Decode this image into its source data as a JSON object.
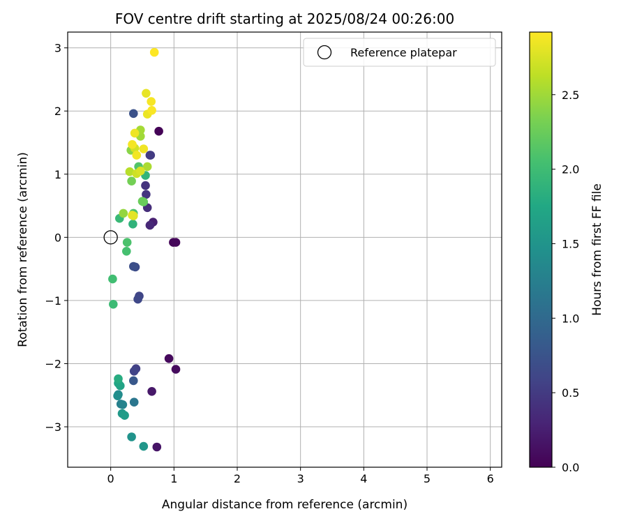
{
  "chart_data": {
    "type": "scatter",
    "title": "FOV centre drift starting at 2025/08/24 00:26:00",
    "xlabel": "Angular distance from reference (arcmin)",
    "ylabel": "Rotation from reference (arcmin)",
    "xlim": [
      -0.68,
      6.18
    ],
    "ylim": [
      -3.64,
      3.25
    ],
    "xticks": [
      0,
      1,
      2,
      3,
      4,
      5,
      6
    ],
    "xtick_labels": [
      "0",
      "1",
      "2",
      "3",
      "4",
      "5",
      "6"
    ],
    "yticks": [
      -3,
      -2,
      -1,
      0,
      1,
      2,
      3
    ],
    "ytick_labels": [
      "−3",
      "−2",
      "−1",
      "0",
      "1",
      "2",
      "3"
    ],
    "grid": true,
    "legend": {
      "position": "top-right",
      "entries": [
        {
          "label": "Reference platepar",
          "marker": "open-circle"
        }
      ]
    },
    "reference": {
      "x": 0,
      "y": 0
    },
    "colorbar": {
      "label": "Hours from first FF file",
      "colormap": "viridis",
      "range": [
        0,
        2.92
      ],
      "ticks": [
        0.0,
        0.5,
        1.0,
        1.5,
        2.0,
        2.5
      ],
      "tick_labels": [
        "0.0",
        "0.5",
        "1.0",
        "1.5",
        "2.0",
        "2.5"
      ]
    },
    "points": [
      {
        "x": 0.76,
        "y": 1.68,
        "t": 0.02
      },
      {
        "x": 0.99,
        "y": -0.08,
        "t": 0.04
      },
      {
        "x": 1.03,
        "y": -0.08,
        "t": 0.05
      },
      {
        "x": 0.92,
        "y": -1.92,
        "t": 0.07
      },
      {
        "x": 1.03,
        "y": -2.09,
        "t": 0.08
      },
      {
        "x": 0.73,
        "y": -3.32,
        "t": 0.16
      },
      {
        "x": 0.65,
        "y": -2.44,
        "t": 0.19
      },
      {
        "x": 0.67,
        "y": 0.24,
        "t": 0.26
      },
      {
        "x": 0.62,
        "y": 0.19,
        "t": 0.33
      },
      {
        "x": 0.58,
        "y": 0.47,
        "t": 0.38
      },
      {
        "x": 0.55,
        "y": 0.82,
        "t": 0.42
      },
      {
        "x": 0.56,
        "y": 0.68,
        "t": 0.45
      },
      {
        "x": 0.63,
        "y": 1.3,
        "t": 0.48
      },
      {
        "x": 0.62,
        "y": 1.3,
        "t": 0.5
      },
      {
        "x": 0.4,
        "y": -2.08,
        "t": 0.55
      },
      {
        "x": 0.37,
        "y": -2.12,
        "t": 0.58
      },
      {
        "x": 0.45,
        "y": -0.93,
        "t": 0.6
      },
      {
        "x": 0.43,
        "y": -0.98,
        "t": 0.63
      },
      {
        "x": 0.39,
        "y": -0.47,
        "t": 0.67
      },
      {
        "x": 0.36,
        "y": -0.46,
        "t": 0.7
      },
      {
        "x": 0.36,
        "y": 1.96,
        "t": 0.73
      },
      {
        "x": 0.36,
        "y": -2.27,
        "t": 0.8
      },
      {
        "x": 0.37,
        "y": -2.61,
        "t": 1.15
      },
      {
        "x": 0.16,
        "y": -2.64,
        "t": 1.25
      },
      {
        "x": 0.19,
        "y": -2.65,
        "t": 1.3
      },
      {
        "x": 0.12,
        "y": -2.49,
        "t": 1.35
      },
      {
        "x": 0.11,
        "y": -2.51,
        "t": 1.42
      },
      {
        "x": 0.33,
        "y": -3.16,
        "t": 1.48
      },
      {
        "x": 0.52,
        "y": -3.31,
        "t": 1.52
      },
      {
        "x": 0.18,
        "y": -2.79,
        "t": 1.56
      },
      {
        "x": 0.22,
        "y": -2.82,
        "t": 1.6
      },
      {
        "x": 0.15,
        "y": -2.35,
        "t": 1.68
      },
      {
        "x": 0.12,
        "y": -2.31,
        "t": 1.72
      },
      {
        "x": 0.12,
        "y": -2.24,
        "t": 1.8
      },
      {
        "x": 0.35,
        "y": 0.21,
        "t": 1.88
      },
      {
        "x": 0.55,
        "y": 0.98,
        "t": 1.9
      },
      {
        "x": 0.14,
        "y": 0.3,
        "t": 1.95
      },
      {
        "x": 0.04,
        "y": -1.06,
        "t": 1.98
      },
      {
        "x": 0.03,
        "y": -0.66,
        "t": 2.02
      },
      {
        "x": 0.25,
        "y": -0.22,
        "t": 2.05
      },
      {
        "x": 0.26,
        "y": -0.08,
        "t": 2.08
      },
      {
        "x": 0.36,
        "y": 0.38,
        "t": 2.1
      },
      {
        "x": 0.44,
        "y": 1.12,
        "t": 2.12
      },
      {
        "x": 0.52,
        "y": 0.56,
        "t": 2.2
      },
      {
        "x": 0.5,
        "y": 0.57,
        "t": 2.25
      },
      {
        "x": 0.33,
        "y": 0.89,
        "t": 2.3
      },
      {
        "x": 0.32,
        "y": 1.38,
        "t": 2.4
      },
      {
        "x": 0.2,
        "y": 0.38,
        "t": 2.45
      },
      {
        "x": 0.47,
        "y": 1.6,
        "t": 2.5
      },
      {
        "x": 0.47,
        "y": 1.7,
        "t": 2.52
      },
      {
        "x": 0.58,
        "y": 1.12,
        "t": 2.55
      },
      {
        "x": 0.3,
        "y": 1.04,
        "t": 2.6
      },
      {
        "x": 0.41,
        "y": 1.01,
        "t": 2.7
      },
      {
        "x": 0.38,
        "y": 1.41,
        "t": 2.72
      },
      {
        "x": 0.47,
        "y": 1.05,
        "t": 2.75
      },
      {
        "x": 0.36,
        "y": 0.34,
        "t": 2.78
      },
      {
        "x": 0.34,
        "y": 0.35,
        "t": 2.8
      },
      {
        "x": 0.56,
        "y": 2.28,
        "t": 2.82
      },
      {
        "x": 0.58,
        "y": 1.95,
        "t": 2.84
      },
      {
        "x": 0.38,
        "y": 1.65,
        "t": 2.85
      },
      {
        "x": 0.52,
        "y": 1.4,
        "t": 2.86
      },
      {
        "x": 0.41,
        "y": 1.3,
        "t": 2.87
      },
      {
        "x": 0.34,
        "y": 1.47,
        "t": 2.88
      },
      {
        "x": 0.64,
        "y": 2.15,
        "t": 2.89
      },
      {
        "x": 0.65,
        "y": 2.01,
        "t": 2.9
      },
      {
        "x": 0.69,
        "y": 2.93,
        "t": 2.92
      }
    ]
  }
}
